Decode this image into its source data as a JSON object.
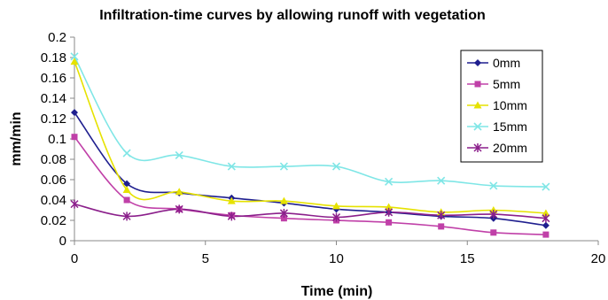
{
  "chart_data": {
    "type": "line",
    "title": "Infiltration-time curves by allowing runoff with vegetation",
    "xlabel": "Time (min)",
    "ylabel": "mm/min",
    "xlim": [
      0,
      20
    ],
    "ylim": [
      0,
      0.2
    ],
    "xticks": [
      "0",
      "5",
      "10",
      "15",
      "20"
    ],
    "yticks": [
      "0",
      "0.02",
      "0.04",
      "0.06",
      "0.08",
      "0.1",
      "0.12",
      "0.14",
      "0.16",
      "0.18",
      "0.2"
    ],
    "xtick_values": [
      0,
      5,
      10,
      15,
      20
    ],
    "ytick_values": [
      0,
      0.02,
      0.04,
      0.06,
      0.08,
      0.1,
      0.12,
      0.14,
      0.16,
      0.18,
      0.2
    ],
    "grid": false,
    "legend_position": "top-right",
    "x": [
      0,
      2,
      4,
      6,
      8,
      10,
      12,
      14,
      16,
      18
    ],
    "series": [
      {
        "name": "0mm",
        "color": "#1f1f8f",
        "marker": "diamond",
        "values": [
          0.126,
          0.056,
          0.047,
          0.042,
          0.037,
          0.031,
          0.028,
          0.024,
          0.022,
          0.015
        ]
      },
      {
        "name": "5mm",
        "color": "#c040a8",
        "marker": "square",
        "values": [
          0.102,
          0.04,
          0.031,
          0.025,
          0.022,
          0.02,
          0.018,
          0.014,
          0.008,
          0.006
        ]
      },
      {
        "name": "10mm",
        "color": "#e6e200",
        "marker": "triangle",
        "values": [
          0.176,
          0.05,
          0.048,
          0.039,
          0.039,
          0.034,
          0.033,
          0.028,
          0.03,
          0.027
        ]
      },
      {
        "name": "15mm",
        "color": "#7fe6e6",
        "marker": "x",
        "values": [
          0.181,
          0.086,
          0.084,
          0.073,
          0.073,
          0.073,
          0.058,
          0.059,
          0.054,
          0.053
        ]
      },
      {
        "name": "20mm",
        "color": "#8b1f8b",
        "marker": "star",
        "values": [
          0.036,
          0.024,
          0.031,
          0.024,
          0.027,
          0.023,
          0.028,
          0.025,
          0.026,
          0.022
        ]
      }
    ]
  }
}
